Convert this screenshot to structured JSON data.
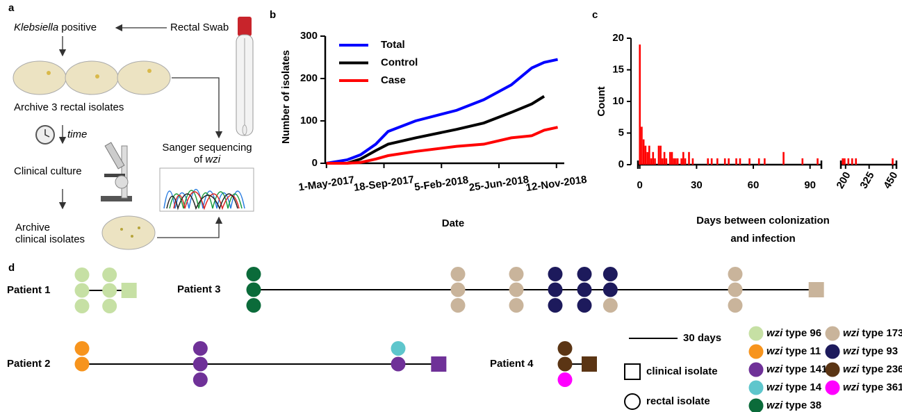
{
  "panel_labels": [
    "a",
    "b",
    "c",
    "d"
  ],
  "workflow": {
    "klebsiella": "Klebsiella",
    "positive": "positive",
    "rectal_swab": "Rectal Swab",
    "archive_rectal": "Archive 3 rectal isolates",
    "time": "time",
    "clinical_culture": "Clinical culture",
    "archive_clinical": [
      "Archive",
      "clinical isolates"
    ],
    "sanger": [
      "Sanger sequencing",
      "of"
    ],
    "wzi": "wzi"
  },
  "chart_data": [
    {
      "type": "line",
      "x": [
        "2017-05-01",
        "2017-06-20",
        "2017-07-23",
        "2017-08-29",
        "2017-09-28",
        "2017-12-04",
        "2018-03-14",
        "2018-05-19",
        "2018-07-25",
        "2018-09-13",
        "2018-10-13",
        "2018-11-15"
      ],
      "series": [
        {
          "name": "Total",
          "color": "#0000ff",
          "values": [
            0,
            8,
            20,
            45,
            75,
            100,
            125,
            150,
            185,
            225,
            238,
            245
          ]
        },
        {
          "name": "Control",
          "color": "#000000",
          "values": [
            0,
            0,
            10,
            30,
            45,
            60,
            80,
            95,
            120,
            140,
            158,
            null
          ]
        },
        {
          "name": "Case",
          "color": "#ff0000",
          "values": [
            0,
            0,
            2,
            10,
            18,
            28,
            40,
            45,
            60,
            65,
            78,
            85
          ]
        }
      ],
      "xlim": [
        "2017-04-28",
        "2018-12-01"
      ],
      "xticks": [
        {
          "value": "2017-05-01",
          "label": "1-May-2017"
        },
        {
          "value": "2017-09-18",
          "label": "18-Sep-2017"
        },
        {
          "value": "2018-02-05",
          "label": "5-Feb-2018"
        },
        {
          "value": "2018-06-25",
          "label": "25-Jun-2018"
        },
        {
          "value": "2018-11-12",
          "label": "12-Nov-2018"
        }
      ],
      "ylim": [
        0,
        300
      ],
      "yticks": [
        0,
        100,
        200,
        300
      ],
      "x_label": "Date",
      "y_label": "Number of isolates"
    },
    {
      "type": "bar",
      "color": "#ff0000",
      "x": [
        0,
        1,
        2,
        3,
        4,
        5,
        6,
        7,
        8,
        10,
        11,
        12,
        13,
        14,
        16,
        17,
        18,
        19,
        20,
        22,
        23,
        24,
        26,
        28,
        36,
        38,
        41,
        45,
        47,
        51,
        53,
        58,
        63,
        66,
        76,
        86,
        94,
        185,
        195,
        215,
        235,
        255,
        450
      ],
      "values": [
        19,
        6,
        4,
        3,
        2,
        3,
        1,
        2,
        1,
        3,
        3,
        1,
        2,
        1,
        2,
        2,
        1,
        1,
        1,
        1,
        2,
        1,
        2,
        1,
        1,
        1,
        1,
        1,
        1,
        1,
        1,
        1,
        1,
        1,
        2,
        1,
        1,
        1,
        1,
        1,
        1,
        1,
        1
      ],
      "xlim": [
        [
          -1,
          96
        ],
        [
          175,
          470
        ]
      ],
      "xticks": [
        0,
        30,
        60,
        90,
        200,
        325,
        450
      ],
      "ylim": [
        0,
        20
      ],
      "yticks": [
        0,
        5,
        10,
        15,
        20
      ],
      "x_label": [
        "Days between colonization",
        "and infection"
      ],
      "y_label": "Count"
    }
  ],
  "timeline": {
    "wzi_prefix": "wzi",
    "types": [
      {
        "name": "type 96",
        "color": "#c6e0a4"
      },
      {
        "name": "type 11",
        "color": "#f7941d"
      },
      {
        "name": "type 141",
        "color": "#6f3198"
      },
      {
        "name": "type 14",
        "color": "#5ec6cc"
      },
      {
        "name": "type 38",
        "color": "#0b6b3a"
      },
      {
        "name": "type 173",
        "color": "#c9b49b"
      },
      {
        "name": "type 93",
        "color": "#1d1a5c"
      },
      {
        "name": "type 236",
        "color": "#5b3514"
      },
      {
        "name": "type 361",
        "color": "#ff00ff"
      }
    ],
    "patients": [
      {
        "name": "Patient 1",
        "rectal": [
          {
            "day": 0,
            "types": [
              "type 96",
              "type 96",
              "type 96"
            ]
          },
          {
            "day": 17,
            "types": [
              "type 96",
              "type 96",
              "type 96"
            ]
          }
        ],
        "clinical": {
          "day": 29,
          "type": "type 96"
        }
      },
      {
        "name": "Patient 2",
        "rectal": [
          {
            "day": 0,
            "types": [
              "type 11",
              "type 11"
            ]
          },
          {
            "day": 73,
            "types": [
              "type 141",
              "type 141",
              "type 141"
            ]
          },
          {
            "day": 195,
            "types": [
              "type 14",
              "type 141"
            ]
          }
        ],
        "clinical": {
          "day": 220,
          "type": "type 141"
        }
      },
      {
        "name": "Patient 3",
        "rectal": [
          {
            "day": 0,
            "types": [
              "type 38",
              "type 38",
              "type 38"
            ]
          },
          {
            "day": 126,
            "types": [
              "type 173",
              "type 173",
              "type 173"
            ]
          },
          {
            "day": 162,
            "types": [
              "type 173",
              "type 173",
              "type 173"
            ]
          },
          {
            "day": 186,
            "types": [
              "type 93",
              "type 93",
              "type 93"
            ]
          },
          {
            "day": 204,
            "types": [
              "type 93",
              "type 93",
              "type 93"
            ]
          },
          {
            "day": 220,
            "types": [
              "type 93",
              "type 93",
              "type 173"
            ]
          },
          {
            "day": 297,
            "types": [
              "type 173",
              "type 173",
              "type 173"
            ]
          }
        ],
        "clinical": {
          "day": 347,
          "type": "type 173"
        }
      },
      {
        "name": "Patient 4",
        "rectal": [
          {
            "day": 0,
            "types": [
              "type 236",
              "type 236",
              "type 361"
            ]
          }
        ],
        "clinical": {
          "day": 15,
          "type": "type 236"
        }
      }
    ],
    "scale_bar": {
      "days": 30,
      "label": "30 days"
    },
    "clinical_label": "clinical isolate",
    "rectal_label": "rectal isolate"
  }
}
